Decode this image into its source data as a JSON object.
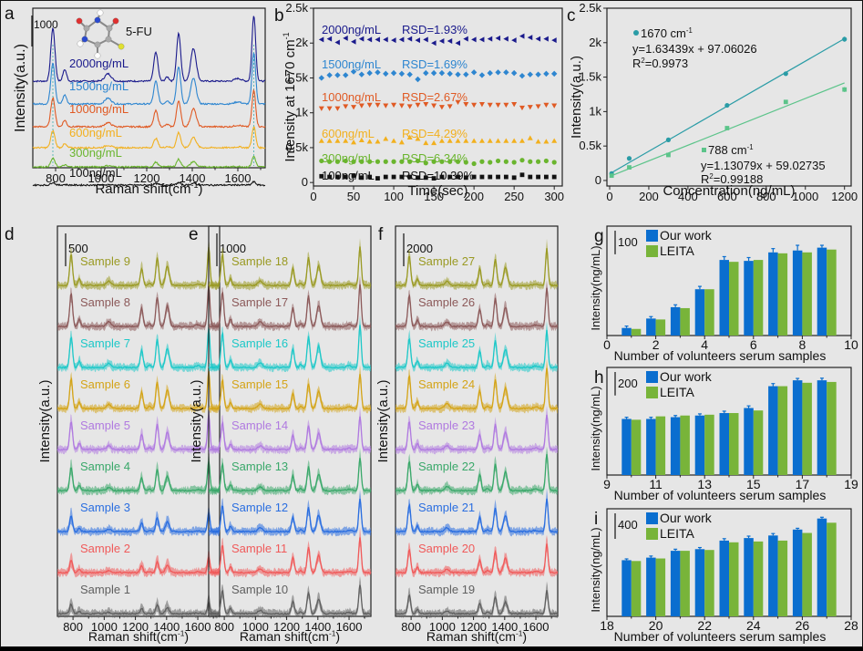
{
  "figure": {
    "background": "#e6e6e6",
    "panel_labels": [
      "a",
      "b",
      "c",
      "d",
      "e",
      "f",
      "g",
      "h",
      "i"
    ]
  },
  "chart_data": [
    {
      "id": "a",
      "type": "line",
      "title": "",
      "xlabel": "Raman shift(cm⁻¹)",
      "ylabel": "Intensity(a.u.)",
      "xlim": [
        700,
        1720
      ],
      "xticks": [
        800,
        1000,
        1200,
        1400,
        1600
      ],
      "scale_bar": "1000",
      "molecule_label": "5-FU",
      "marker_lines": [
        788,
        1670
      ],
      "peaks_cm1": [
        788,
        840,
        1030,
        1240,
        1340,
        1405,
        1670
      ],
      "series": [
        {
          "name": "2000ng/mL",
          "color": "#1a1a8c",
          "relative_peak_scale": 1.0
        },
        {
          "name": "1500ng/mL",
          "color": "#2e86d0",
          "relative_peak_scale": 0.78
        },
        {
          "name": "1000ng/mL",
          "color": "#e05a24",
          "relative_peak_scale": 0.55
        },
        {
          "name": "600ng/mL",
          "color": "#f2b01e",
          "relative_peak_scale": 0.32
        },
        {
          "name": "300ng/mL",
          "color": "#6ab52e",
          "relative_peak_scale": 0.16
        },
        {
          "name": "100ng/mL",
          "color": "#111111",
          "relative_peak_scale": 0.05
        }
      ]
    },
    {
      "id": "b",
      "type": "scatter",
      "xlabel": "Time(sec)",
      "ylabel": "Intensity at 1670 cm⁻¹",
      "xlim": [
        0,
        310
      ],
      "ylim": [
        -50,
        2500
      ],
      "xticks": [
        0,
        50,
        100,
        150,
        200,
        250,
        300
      ],
      "yticks": [
        0,
        500,
        1000,
        1500,
        2000,
        2500
      ],
      "ytick_labels": [
        "0",
        "0.5k",
        "1k",
        "1.5k",
        "2k",
        "2.5k"
      ],
      "x": [
        10,
        20,
        30,
        40,
        50,
        60,
        70,
        80,
        90,
        100,
        110,
        120,
        130,
        140,
        150,
        160,
        170,
        180,
        190,
        200,
        210,
        220,
        230,
        240,
        250,
        260,
        270,
        280,
        290,
        300
      ],
      "series": [
        {
          "name": "2000ng/mL",
          "rsd": "RSD=1.93%",
          "color": "#1a1a8c",
          "marker": "triangle-left",
          "values": [
            2050,
            2060,
            2010,
            2070,
            2020,
            2060,
            2050,
            2050,
            2050,
            2040,
            2050,
            2060,
            2040,
            2050,
            2000,
            2030,
            2030,
            2000,
            2060,
            2050,
            2050,
            2060,
            2070,
            2060,
            2040,
            2100,
            2080,
            2060,
            2060,
            2040
          ]
        },
        {
          "name": "1500ng/mL",
          "rsd": "RSD=1.69%",
          "color": "#2e86d0",
          "marker": "diamond",
          "values": [
            1500,
            1540,
            1540,
            1540,
            1590,
            1550,
            1570,
            1580,
            1560,
            1570,
            1560,
            1550,
            1480,
            1570,
            1570,
            1570,
            1560,
            1550,
            1550,
            1580,
            1540,
            1570,
            1580,
            1580,
            1570,
            1530,
            1550,
            1550,
            1560,
            1560
          ]
        },
        {
          "name": "1000ng/mL",
          "rsd": "RSD=2.67%",
          "color": "#e05a24",
          "marker": "triangle-down",
          "values": [
            1060,
            1060,
            1060,
            1090,
            1080,
            1100,
            1110,
            1110,
            1100,
            1110,
            1100,
            1090,
            1110,
            1120,
            1100,
            1080,
            1090,
            1150,
            1120,
            1110,
            1120,
            1110,
            1110,
            1110,
            1120,
            1070,
            1080,
            1090,
            1110,
            1100
          ]
        },
        {
          "name": "600ng/mL",
          "rsd": "RSD=4.29%",
          "color": "#f2b01e",
          "marker": "triangle-up",
          "values": [
            600,
            600,
            600,
            600,
            580,
            610,
            590,
            590,
            630,
            600,
            580,
            650,
            630,
            570,
            570,
            600,
            600,
            600,
            600,
            600,
            600,
            600,
            600,
            600,
            600,
            600,
            640,
            590,
            590,
            600
          ]
        },
        {
          "name": "300ng/mL",
          "rsd": "RSD=6.34%",
          "color": "#6ab52e",
          "marker": "circle",
          "values": [
            310,
            300,
            300,
            310,
            300,
            300,
            300,
            300,
            300,
            300,
            300,
            300,
            310,
            280,
            300,
            300,
            300,
            300,
            290,
            270,
            300,
            290,
            310,
            300,
            290,
            320,
            300,
            300,
            310,
            290
          ]
        },
        {
          "name": "100ng/mL",
          "rsd": "RSD=10.39%",
          "color": "#111111",
          "marker": "square",
          "values": [
            90,
            80,
            80,
            80,
            100,
            70,
            80,
            60,
            80,
            80,
            80,
            80,
            70,
            70,
            60,
            80,
            80,
            80,
            70,
            80,
            80,
            80,
            80,
            80,
            70,
            110,
            80,
            80,
            80,
            80
          ]
        }
      ]
    },
    {
      "id": "c",
      "type": "scatter",
      "xlabel": "Concentration(ng/mL)",
      "ylabel": "Intensity(a.u.)",
      "xlim": [
        0,
        1220
      ],
      "ylim": [
        -80,
        2500
      ],
      "xticks": [
        0,
        200,
        400,
        600,
        800,
        1000,
        1200
      ],
      "yticks": [
        0,
        500,
        1000,
        1500,
        2000,
        2500
      ],
      "ytick_labels": [
        "0",
        "0.5k",
        "1k",
        "1.5k",
        "2k",
        "2.5k"
      ],
      "series": [
        {
          "name": "1670 cm⁻¹",
          "equation": "y=1.63439x + 97.06026",
          "r2": "R²=0.9973",
          "color": "#2a9ca6",
          "slope": 1.63439,
          "intercept": 97.06026,
          "x": [
            10,
            100,
            300,
            600,
            900,
            1200
          ],
          "y": [
            100,
            320,
            590,
            1090,
            1550,
            2050
          ],
          "err": [
            15,
            15,
            20,
            25,
            25,
            35
          ]
        },
        {
          "name": "788 cm⁻¹",
          "equation": "y=1.13079x + 59.02735",
          "r2": "R²=0.99188",
          "color": "#5cc48a",
          "slope": 1.13079,
          "intercept": 59.02735,
          "x": [
            10,
            100,
            300,
            600,
            900,
            1200
          ],
          "y": [
            70,
            190,
            370,
            760,
            1140,
            1320
          ],
          "err": [
            10,
            15,
            20,
            25,
            25,
            35
          ]
        }
      ]
    },
    {
      "id": "d",
      "type": "line",
      "xlabel": "Raman shift(cm⁻¹)",
      "ylabel": "Intensity(a.u.)",
      "xlim": [
        700,
        1740
      ],
      "xticks": [
        800,
        1000,
        1200,
        1400,
        1600
      ],
      "xtick_labels": [
        "800",
        "1000",
        "1200",
        "1400",
        "1600"
      ],
      "scale_bar": "500",
      "series": [
        {
          "name": "Sample 9",
          "color": "#9a9a24",
          "relative_peak_scale": 1.0
        },
        {
          "name": "Sample 8",
          "color": "#8c5a5a",
          "relative_peak_scale": 1.05
        },
        {
          "name": "Sample 7",
          "color": "#1ec8c8",
          "relative_peak_scale": 1.0
        },
        {
          "name": "Sample 6",
          "color": "#d4a418",
          "relative_peak_scale": 0.95
        },
        {
          "name": "Sample 5",
          "color": "#b07ae0",
          "relative_peak_scale": 0.9
        },
        {
          "name": "Sample 4",
          "color": "#3aa86a",
          "relative_peak_scale": 0.75
        },
        {
          "name": "Sample 3",
          "color": "#2a6ee0",
          "relative_peak_scale": 0.5
        },
        {
          "name": "Sample 2",
          "color": "#f05a5a",
          "relative_peak_scale": 0.4
        },
        {
          "name": "Sample 1",
          "color": "#606060",
          "relative_peak_scale": 0.3
        }
      ]
    },
    {
      "id": "e",
      "type": "line",
      "xlabel": "Raman shift(cm⁻¹)",
      "ylabel": "Intensity(a.u.)",
      "xlim": [
        700,
        1740
      ],
      "xticks": [
        800,
        1000,
        1200,
        1400,
        1600
      ],
      "xtick_labels": [
        "800",
        "1000",
        "1200",
        "1400",
        "1600"
      ],
      "scale_bar": "1000",
      "series": [
        {
          "name": "Sample 18",
          "color": "#9a9a24",
          "relative_peak_scale": 1.0
        },
        {
          "name": "Sample 17",
          "color": "#8c5a5a",
          "relative_peak_scale": 1.1
        },
        {
          "name": "Sample 16",
          "color": "#1ec8c8",
          "relative_peak_scale": 1.1
        },
        {
          "name": "Sample 15",
          "color": "#d4a418",
          "relative_peak_scale": 0.9
        },
        {
          "name": "Sample 14",
          "color": "#b07ae0",
          "relative_peak_scale": 0.85
        },
        {
          "name": "Sample 13",
          "color": "#3aa86a",
          "relative_peak_scale": 0.85
        },
        {
          "name": "Sample 12",
          "color": "#2a6ee0",
          "relative_peak_scale": 0.85
        },
        {
          "name": "Sample 11",
          "color": "#f05a5a",
          "relative_peak_scale": 0.9
        },
        {
          "name": "Sample 10",
          "color": "#606060",
          "relative_peak_scale": 0.75
        }
      ]
    },
    {
      "id": "f",
      "type": "line",
      "xlabel": "Raman shift(cm⁻¹)",
      "ylabel": "Intensity(a.u.)",
      "xlim": [
        700,
        1740
      ],
      "xticks": [
        800,
        1000,
        1200,
        1400,
        1600
      ],
      "xtick_labels": [
        "800",
        "1000",
        "1200",
        "1400",
        "1600"
      ],
      "scale_bar": "2000",
      "series": [
        {
          "name": "Sample 27",
          "color": "#9a9a24",
          "relative_peak_scale": 0.95
        },
        {
          "name": "Sample 26",
          "color": "#8c5a5a",
          "relative_peak_scale": 1.0
        },
        {
          "name": "Sample 25",
          "color": "#1ec8c8",
          "relative_peak_scale": 0.95
        },
        {
          "name": "Sample 24",
          "color": "#d4a418",
          "relative_peak_scale": 1.05
        },
        {
          "name": "Sample 23",
          "color": "#b07ae0",
          "relative_peak_scale": 0.9
        },
        {
          "name": "Sample 22",
          "color": "#3aa86a",
          "relative_peak_scale": 0.95
        },
        {
          "name": "Sample 21",
          "color": "#2a6ee0",
          "relative_peak_scale": 0.85
        },
        {
          "name": "Sample 20",
          "color": "#f05a5a",
          "relative_peak_scale": 0.75
        },
        {
          "name": "Sample 19",
          "color": "#606060",
          "relative_peak_scale": 0.6
        }
      ]
    },
    {
      "id": "g",
      "type": "bar",
      "xlabel": "Number of volunteers serum samples",
      "ylabel": "Intensity(ng/mL)",
      "xlim": [
        0,
        10
      ],
      "xticks": [
        0,
        2,
        4,
        6,
        8,
        10
      ],
      "scale_bar": "100",
      "scale_bar_value": 100,
      "categories": [
        1,
        2,
        3,
        4,
        5,
        6,
        7,
        8,
        9
      ],
      "ymax": 440,
      "series": [
        {
          "name": "Our work",
          "color": "#0a6ecf",
          "values": [
            32,
            72,
            120,
            196,
            320,
            316,
            352,
            360,
            372
          ],
          "err": [
            8,
            8,
            10,
            12,
            14,
            14,
            16,
            22,
            10
          ]
        },
        {
          "name": "LEITA",
          "color": "#78b43a",
          "values": [
            28,
            68,
            116,
            196,
            312,
            320,
            348,
            352,
            364
          ]
        }
      ]
    },
    {
      "id": "h",
      "type": "bar",
      "xlabel": "Number of volunteers serum samples",
      "ylabel": "Intensity(ng/mL)",
      "xlim": [
        9,
        19
      ],
      "xticks": [
        9,
        11,
        13,
        15,
        17,
        19
      ],
      "scale_bar": "200",
      "scale_bar_value": 200,
      "categories": [
        10,
        11,
        12,
        13,
        14,
        15,
        16,
        17,
        18
      ],
      "ymax": 870,
      "series": [
        {
          "name": "Our work",
          "color": "#0a6ecf",
          "values": [
            478,
            478,
            493,
            507,
            528,
            571,
            757,
            807,
            807
          ],
          "err": [
            14,
            14,
            14,
            14,
            16,
            18,
            22,
            16,
            18
          ]
        },
        {
          "name": "LEITA",
          "color": "#78b43a",
          "values": [
            471,
            500,
            507,
            514,
            528,
            550,
            757,
            786,
            793
          ]
        }
      ]
    },
    {
      "id": "i",
      "type": "bar",
      "xlabel": "Number of volunteers serum samples",
      "ylabel": "Intensity(ng/mL)",
      "xlim": [
        18,
        28
      ],
      "xticks": [
        18,
        20,
        22,
        24,
        26,
        28
      ],
      "scale_bar": "400",
      "scale_bar_value": 400,
      "categories": [
        19,
        20,
        21,
        22,
        23,
        24,
        25,
        26,
        27
      ],
      "ymax": 1600,
      "series": [
        {
          "name": "Our work",
          "color": "#0a6ecf",
          "values": [
            880,
            920,
            1027,
            1053,
            1187,
            1227,
            1267,
            1360,
            1533
          ],
          "err": [
            20,
            25,
            25,
            25,
            30,
            30,
            30,
            20,
            20
          ]
        },
        {
          "name": "LEITA",
          "color": "#78b43a",
          "values": [
            867,
            907,
            1027,
            1040,
            1160,
            1173,
            1187,
            1307,
            1467
          ]
        }
      ]
    }
  ]
}
